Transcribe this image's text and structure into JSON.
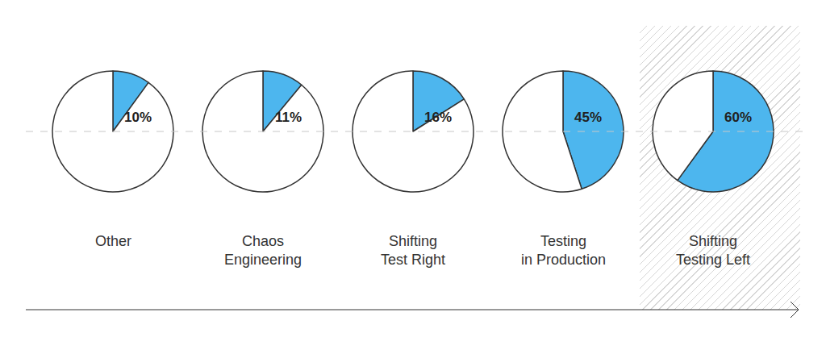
{
  "chart_data": {
    "type": "pie",
    "categories": [
      "Other",
      "Chaos Engineering",
      "Shifting Test Right",
      "Testing in Production",
      "Shifting Testing Left"
    ],
    "values": [
      10,
      11,
      16,
      45,
      60
    ],
    "value_labels": [
      "10%",
      "11%",
      "16%",
      "45%",
      "60%"
    ],
    "color": "#4db6ee",
    "data_labels": true
  }
}
